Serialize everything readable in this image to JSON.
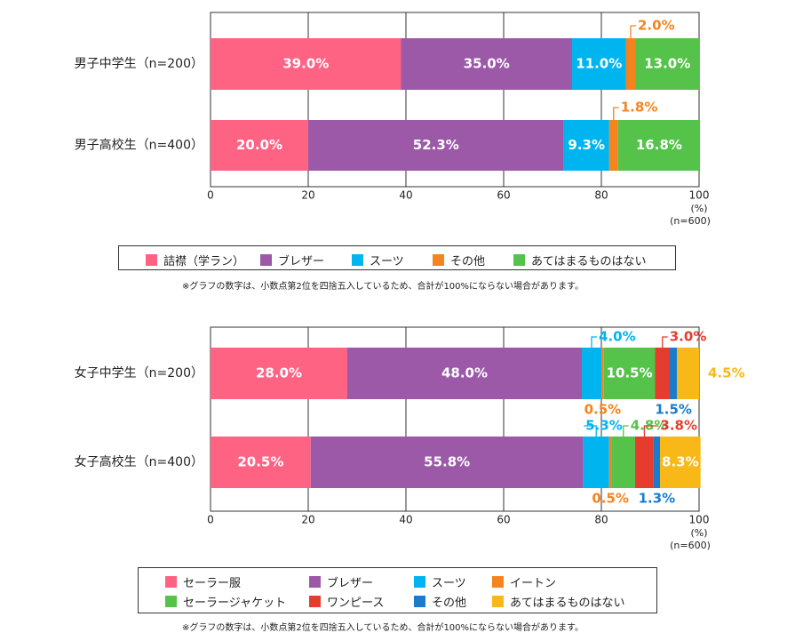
{
  "footnote": "※グラフの数字は、小数点第2位を四捨五入しているため、合計が100%にならない場合があります。",
  "colors": {
    "pink": "#ff6384",
    "purple": "#9b59a8",
    "cyan": "#00b5ef",
    "orange": "#f5841f",
    "green": "#55c24a",
    "red": "#e63c2e",
    "blue": "#1b7bcc",
    "yellow": "#f8b818"
  },
  "chart_data": [
    {
      "type": "bar",
      "orientation": "horizontal-stacked",
      "categories": [
        "男子中学生（n=200）",
        "男子高校生（n=400）"
      ],
      "xlim": [
        0,
        100
      ],
      "xticks": [
        "0",
        "20",
        "40",
        "60",
        "80",
        "100"
      ],
      "unit_label": "(%)",
      "n_label": "(n=600)",
      "grid": true,
      "legend_position": "bottom",
      "series": [
        {
          "name": "詰襟（学ラン）",
          "color": "#ff6384",
          "values": [
            39.0,
            20.0
          ],
          "labels": [
            "39.0%",
            "20.0%"
          ]
        },
        {
          "name": "ブレザー",
          "color": "#9b59a8",
          "values": [
            35.0,
            52.3
          ],
          "labels": [
            "35.0%",
            "52.3%"
          ]
        },
        {
          "name": "スーツ",
          "color": "#00b5ef",
          "values": [
            11.0,
            9.3
          ],
          "labels": [
            "11.0%",
            "9.3%"
          ]
        },
        {
          "name": "その他",
          "color": "#f5841f",
          "values": [
            2.0,
            1.8
          ],
          "labels": [
            "2.0%",
            "1.8%"
          ]
        },
        {
          "name": "あてはまるものはない",
          "color": "#55c24a",
          "values": [
            13.0,
            16.8
          ],
          "labels": [
            "13.0%",
            "16.8%"
          ]
        }
      ]
    },
    {
      "type": "bar",
      "orientation": "horizontal-stacked",
      "categories": [
        "女子中学生（n=200）",
        "女子高校生（n=400）"
      ],
      "xlim": [
        0,
        100
      ],
      "xticks": [
        "0",
        "20",
        "40",
        "60",
        "80",
        "100"
      ],
      "unit_label": "(%)",
      "n_label": "(n=600)",
      "grid": true,
      "legend_position": "bottom",
      "series": [
        {
          "name": "セーラー服",
          "color": "#ff6384",
          "values": [
            28.0,
            20.5
          ],
          "labels": [
            "28.0%",
            "20.5%"
          ]
        },
        {
          "name": "ブレザー",
          "color": "#9b59a8",
          "values": [
            48.0,
            55.8
          ],
          "labels": [
            "48.0%",
            "55.8%"
          ]
        },
        {
          "name": "スーツ",
          "color": "#00b5ef",
          "values": [
            4.0,
            5.3
          ],
          "labels": [
            "4.0%",
            "5.3%"
          ]
        },
        {
          "name": "イートン",
          "color": "#f5841f",
          "values": [
            0.5,
            0.5
          ],
          "labels": [
            "0.5%",
            "0.5%"
          ]
        },
        {
          "name": "セーラージャケット",
          "color": "#55c24a",
          "values": [
            10.5,
            4.8
          ],
          "labels": [
            "10.5%",
            "4.8%"
          ]
        },
        {
          "name": "ワンピース",
          "color": "#e63c2e",
          "values": [
            3.0,
            3.8
          ],
          "labels": [
            "3.0%",
            "3.8%"
          ]
        },
        {
          "name": "その他",
          "color": "#1b7bcc",
          "values": [
            1.5,
            1.3
          ],
          "labels": [
            "1.5%",
            "1.3%"
          ]
        },
        {
          "name": "あてはまるものはない",
          "color": "#f8b818",
          "values": [
            4.5,
            8.3
          ],
          "labels": [
            "4.5%",
            "8.3%"
          ]
        }
      ]
    }
  ]
}
